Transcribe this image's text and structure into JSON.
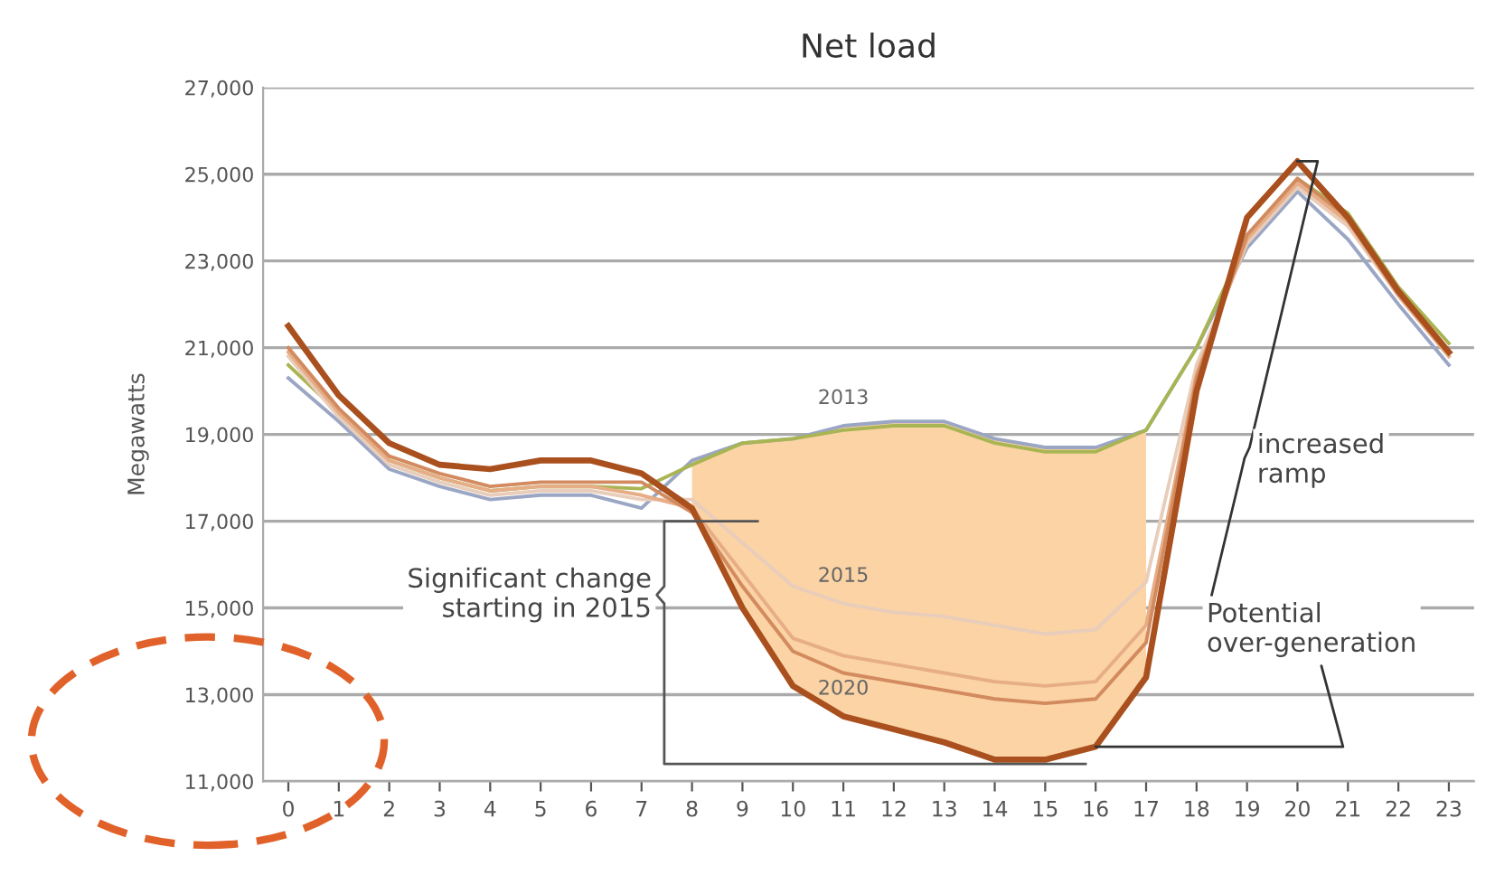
{
  "chart_data": {
    "type": "line",
    "title": "Net load",
    "ylabel": "Megawatts",
    "x": [
      0,
      1,
      2,
      3,
      4,
      5,
      6,
      7,
      8,
      9,
      10,
      11,
      12,
      13,
      14,
      15,
      16,
      17,
      18,
      19,
      20,
      21,
      22,
      23
    ],
    "xlim": [
      -0.5,
      23.5
    ],
    "xticks": [
      0,
      1,
      2,
      3,
      4,
      5,
      6,
      7,
      8,
      9,
      10,
      11,
      12,
      13,
      14,
      15,
      16,
      17,
      18,
      19,
      20,
      21,
      22,
      23
    ],
    "ylim": [
      11000,
      27000
    ],
    "yticks": [
      {
        "value": 11000,
        "label": "11,000"
      },
      {
        "value": 13000,
        "label": "13,000"
      },
      {
        "value": 15000,
        "label": "15,000"
      },
      {
        "value": 17000,
        "label": "17,000"
      },
      {
        "value": 19000,
        "label": "19,000"
      },
      {
        "value": 21000,
        "label": "21,000"
      },
      {
        "value": 23000,
        "label": "23,000"
      },
      {
        "value": 25000,
        "label": "25,000"
      },
      {
        "value": 27000,
        "label": "27,000"
      }
    ],
    "grid": "y",
    "series": [
      {
        "name": "2013",
        "color": "#9aa6c4",
        "values": [
          20300,
          19300,
          18200,
          17800,
          17500,
          17600,
          17600,
          17300,
          18400,
          18800,
          18900,
          19200,
          19300,
          19300,
          18900,
          18700,
          18700,
          19100,
          21000,
          23300,
          24600,
          23500,
          22000,
          20600
        ]
      },
      {
        "color": "#a9b553",
        "values": [
          20600,
          19500,
          18400,
          18000,
          17700,
          17800,
          17800,
          17750,
          18300,
          18800,
          18900,
          19100,
          19200,
          19200,
          18800,
          18600,
          18600,
          19100,
          21000,
          23500,
          24900,
          24100,
          22400,
          21100
        ]
      },
      {
        "name": "2015",
        "color": "#e9cdbb",
        "values": [
          20800,
          19400,
          18300,
          17900,
          17600,
          17700,
          17700,
          17500,
          17500,
          16500,
          15500,
          15100,
          14900,
          14800,
          14600,
          14400,
          14500,
          15600,
          20600,
          23400,
          24700,
          23800,
          22200,
          20800
        ]
      },
      {
        "color": "#e6ad86",
        "values": [
          20900,
          19500,
          18400,
          18000,
          17700,
          17800,
          17800,
          17600,
          17300,
          15800,
          14300,
          13900,
          13700,
          13500,
          13300,
          13200,
          13300,
          14600,
          20400,
          23500,
          24800,
          23900,
          22200,
          20800
        ]
      },
      {
        "color": "#d28a5e",
        "values": [
          21000,
          19600,
          18500,
          18100,
          17800,
          17900,
          17900,
          17900,
          17200,
          15500,
          14000,
          13500,
          13300,
          13100,
          12900,
          12800,
          12900,
          14200,
          20300,
          23600,
          24900,
          24000,
          22300,
          20900
        ]
      },
      {
        "name": "2020",
        "color": "#a9501e",
        "values": [
          21500,
          19900,
          18800,
          18300,
          18200,
          18400,
          18400,
          18100,
          17300,
          15000,
          13200,
          12500,
          12200,
          11900,
          11500,
          11500,
          11800,
          13400,
          20000,
          24000,
          25300,
          24000,
          22300,
          20900
        ],
        "lower": [
          null,
          null,
          null,
          null,
          null,
          null,
          null,
          null,
          17300,
          15000,
          13200,
          12500,
          12200,
          11900,
          11500,
          11500,
          11800,
          13400,
          null,
          null,
          null,
          null,
          null,
          null
        ],
        "upper": [
          null,
          null,
          null,
          null,
          null,
          null,
          null,
          null,
          18400,
          18800,
          18900,
          19200,
          19300,
          19300,
          18900,
          18700,
          18700,
          19100,
          null,
          null,
          null,
          null,
          null,
          null
        ]
      }
    ],
    "annotations": [
      "Significant change\nstarting in 2015",
      "increased\nramp",
      {
        "text": "Potential\nover-generation",
        "x": 16,
        "y": 11800
      }
    ]
  }
}
